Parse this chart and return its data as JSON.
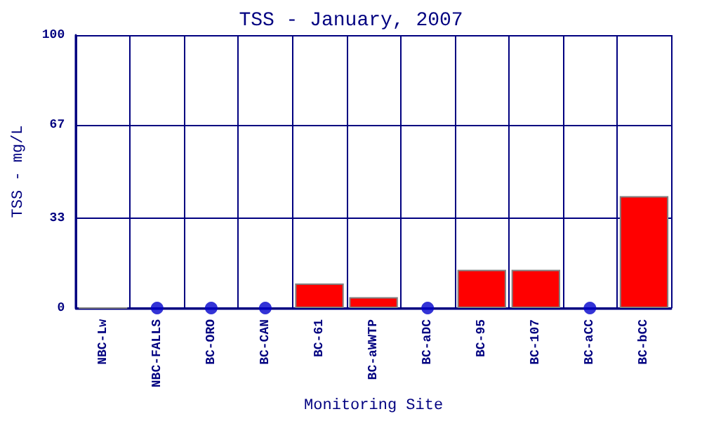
{
  "chart_data": {
    "type": "bar",
    "title": "TSS - January, 2007",
    "xlabel": "Monitoring Site",
    "ylabel": "TSS - mg/L",
    "categories": [
      "NBC-Lw",
      "NBC-FALLS",
      "BC-ORO",
      "BC-CAN",
      "BC-61",
      "BC-aWWTP",
      "BC-aDC",
      "BC-95",
      "BC-107",
      "BC-aCC",
      "BC-bCC"
    ],
    "series": [
      {
        "color": "#ff0000",
        "colors": [
          "#808080",
          null,
          null,
          null,
          "#ff0000",
          "#ff0000",
          null,
          "#ff0000",
          "#ff0000",
          null,
          "#ff0000"
        ],
        "values": [
          0,
          null,
          null,
          null,
          9,
          4,
          null,
          14,
          14,
          null,
          41
        ]
      },
      {
        "type": "scatter",
        "color": "#0000cc",
        "marker": "circle",
        "x": [
          "NBC-FALLS",
          "BC-ORO",
          "BC-CAN",
          "BC-aDC",
          "BC-aCC"
        ],
        "values": [
          0,
          0,
          0,
          0,
          0
        ]
      }
    ],
    "ylim": [
      0,
      100
    ],
    "yticks": [
      0,
      33,
      67,
      100
    ],
    "grid": true
  }
}
